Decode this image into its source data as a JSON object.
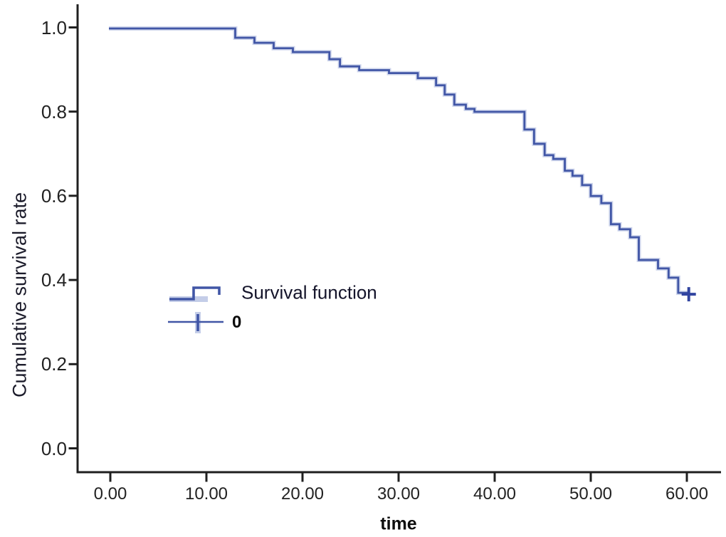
{
  "figure": {
    "background": "#ffffff",
    "axis_color": "#1f1f1f",
    "curve_color": "#4156a6",
    "curve_halo_color": "#b5c0e2",
    "censor_color": "#3144a0",
    "text_color": "#222222"
  },
  "chart_data": {
    "type": "line",
    "subtype": "kaplan-meier-step-survival",
    "title": "",
    "xlabel": "time",
    "ylabel": "Cumulative survival rate",
    "grid": false,
    "legend_position": "inside-left-middle",
    "xlim": [
      -3.5,
      63.5
    ],
    "ylim": [
      -0.055,
      1.058
    ],
    "x_ticks": [
      "0.00",
      "10.00",
      "20.00",
      "30.00",
      "40.00",
      "50.00",
      "60.00"
    ],
    "x_tick_values": [
      0,
      10,
      20,
      30,
      40,
      50,
      60
    ],
    "y_ticks": [
      "1.0",
      "0.8",
      "0.6",
      "0.4",
      "0.2",
      "0.0"
    ],
    "y_tick_values": [
      1.0,
      0.8,
      0.6,
      0.4,
      0.2,
      0.0
    ],
    "legend": [
      {
        "label": "Survival function",
        "symbol": "step-line"
      },
      {
        "label": "0",
        "symbol": "censor-plus"
      }
    ],
    "series": [
      {
        "name": "Survival function",
        "step": "post",
        "points": [
          [
            0,
            1.0
          ],
          [
            13,
            0.978
          ],
          [
            15,
            0.966
          ],
          [
            17,
            0.953
          ],
          [
            19,
            0.944
          ],
          [
            22.8,
            0.927
          ],
          [
            23.9,
            0.91
          ],
          [
            25.9,
            0.901
          ],
          [
            29,
            0.894
          ],
          [
            32,
            0.882
          ],
          [
            33.9,
            0.865
          ],
          [
            34.8,
            0.843
          ],
          [
            35.8,
            0.819
          ],
          [
            37,
            0.809
          ],
          [
            37.9,
            0.802
          ],
          [
            43.1,
            0.76
          ],
          [
            44.1,
            0.726
          ],
          [
            45.2,
            0.699
          ],
          [
            46.1,
            0.69
          ],
          [
            47.3,
            0.662
          ],
          [
            48.1,
            0.65
          ],
          [
            49.1,
            0.628
          ],
          [
            50,
            0.602
          ],
          [
            51.1,
            0.585
          ],
          [
            52.1,
            0.535
          ],
          [
            53,
            0.523
          ],
          [
            54.1,
            0.504
          ],
          [
            55,
            0.45
          ],
          [
            57,
            0.43
          ],
          [
            58.1,
            0.408
          ],
          [
            59.1,
            0.372
          ],
          [
            60.2,
            0.372
          ]
        ]
      }
    ],
    "censor_marks": [
      [
        60.2,
        0.372
      ]
    ]
  }
}
